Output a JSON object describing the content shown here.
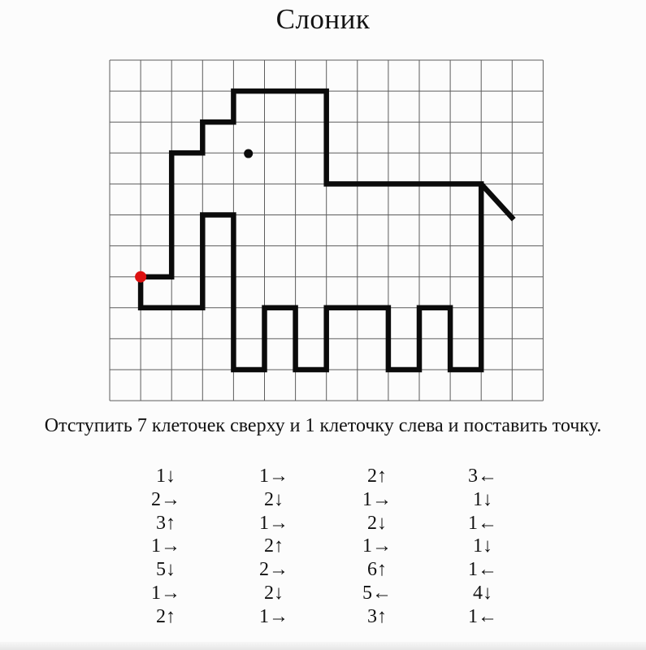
{
  "title": "Слоник",
  "instruction": "Отступить 7 клеточек сверху и 1 клеточку слева и поставить точку.",
  "grid": {
    "cols": 14,
    "rows": 11,
    "line_color": "#5c5c5c"
  },
  "figure": {
    "name": "elephant-outline",
    "stroke_color": "#0b0b0b",
    "stroke_width": 6.5,
    "closed": true,
    "path_points": [
      [
        1,
        7
      ],
      [
        1,
        8
      ],
      [
        3,
        8
      ],
      [
        3,
        5
      ],
      [
        4,
        5
      ],
      [
        4,
        10
      ],
      [
        5,
        10
      ],
      [
        5,
        8
      ],
      [
        6,
        8
      ],
      [
        6,
        10
      ],
      [
        7,
        10
      ],
      [
        7,
        8
      ],
      [
        9,
        8
      ],
      [
        9,
        10
      ],
      [
        10,
        10
      ],
      [
        10,
        8
      ],
      [
        11,
        8
      ],
      [
        11,
        10
      ],
      [
        12,
        10
      ],
      [
        12,
        4
      ],
      [
        7,
        4
      ],
      [
        7,
        1
      ],
      [
        4,
        1
      ],
      [
        4,
        2
      ],
      [
        3,
        2
      ],
      [
        3,
        3
      ],
      [
        2,
        3
      ],
      [
        2,
        7
      ]
    ],
    "tail": {
      "from": [
        12,
        4
      ],
      "to": [
        13.05,
        5.15
      ]
    },
    "eye": {
      "col": 4.48,
      "row": 3.02,
      "radius": 5.5,
      "color": "#0b0b0b"
    },
    "start_dot": {
      "col": 1,
      "row": 7,
      "radius": 7,
      "color": "#dd1111"
    }
  },
  "moves": {
    "columns": [
      [
        "1↓",
        "2→",
        "3↑",
        "1→",
        "5↓",
        "1→",
        "2↑"
      ],
      [
        "1→",
        "2↓",
        "1→",
        "2↑",
        "2→",
        "2↓",
        "1→"
      ],
      [
        "2↑",
        "1→",
        "2↓",
        "1→",
        "6↑",
        "5←",
        "3↑"
      ],
      [
        "3←",
        "1↓",
        "1←",
        "1↓",
        "1←",
        "4↓",
        "1←"
      ]
    ]
  }
}
